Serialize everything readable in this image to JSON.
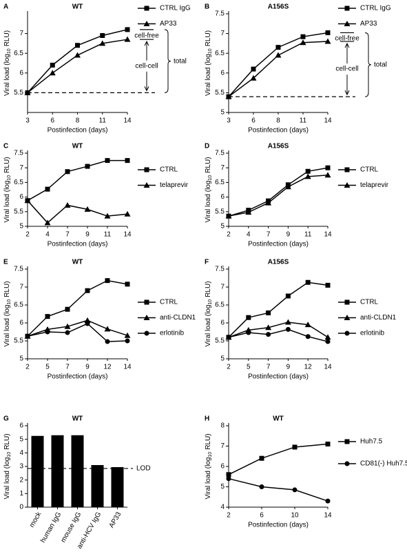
{
  "chart_data": [
    {
      "type": "line",
      "label": "A",
      "title": "WT",
      "categories": [
        "3",
        "6",
        "8",
        "11",
        "14"
      ],
      "series": [
        {
          "name": "CTRL IgG",
          "color": "#000000",
          "marker": "s",
          "values": [
            5.5,
            6.2,
            6.7,
            6.95,
            7.1
          ]
        },
        {
          "name": "AP33",
          "color": "#000000",
          "marker": "^",
          "values": [
            5.5,
            6.0,
            6.45,
            6.75,
            6.85
          ]
        }
      ],
      "ylim": [
        5,
        7.5
      ],
      "yticks": [
        5.5,
        6,
        6.5,
        7
      ],
      "hline": 5.5,
      "annotations": [
        "cell-free",
        "cell-cell",
        "total"
      ],
      "xlabel": "Postinfection (days)",
      "ylabel_parts": [
        "Viral load (log",
        "10",
        "RLU)"
      ]
    },
    {
      "type": "line",
      "label": "B",
      "title": "A156S",
      "categories": [
        "3",
        "6",
        "8",
        "11",
        "14"
      ],
      "series": [
        {
          "name": "CTRL IgG",
          "color": "#000000",
          "marker": "s",
          "values": [
            5.4,
            6.1,
            6.65,
            6.92,
            7.02
          ]
        },
        {
          "name": "AP33",
          "color": "#000000",
          "marker": "^",
          "values": [
            5.4,
            5.87,
            6.45,
            6.77,
            6.8
          ]
        }
      ],
      "ylim": [
        5,
        7.5
      ],
      "yticks": [
        5,
        5.5,
        6,
        6.5,
        7,
        7.5
      ],
      "hline": 5.4,
      "annotations": [
        "cell-free",
        "cell-cell",
        "total"
      ],
      "xlabel": "Postinfection (days)",
      "ylabel_parts": [
        "Viral load (log",
        "10",
        "RLU)"
      ]
    },
    {
      "type": "line",
      "label": "C",
      "title": "WT",
      "categories": [
        "2",
        "4",
        "7",
        "9",
        "11",
        "14"
      ],
      "series": [
        {
          "name": "CTRL",
          "color": "#000000",
          "marker": "s",
          "values": [
            5.88,
            6.27,
            6.87,
            7.05,
            7.25,
            7.25
          ]
        },
        {
          "name": "telaprevir",
          "color": "#000000",
          "marker": "^",
          "values": [
            5.88,
            5.12,
            5.72,
            5.58,
            5.35,
            5.42
          ]
        }
      ],
      "ylim": [
        5,
        7.5
      ],
      "yticks": [
        5,
        5.5,
        6,
        6.5,
        7,
        7.5
      ],
      "xlabel": "Postinfection (days)",
      "ylabel_parts": [
        "Viral load (log",
        "10",
        "RLU)"
      ]
    },
    {
      "type": "line",
      "label": "D",
      "title": "A156S",
      "categories": [
        "2",
        "4",
        "7",
        "9",
        "11",
        "14"
      ],
      "series": [
        {
          "name": "CTRL",
          "color": "#000000",
          "marker": "s",
          "values": [
            5.35,
            5.55,
            5.87,
            6.42,
            6.88,
            7.0
          ]
        },
        {
          "name": "telaprevir",
          "color": "#000000",
          "marker": "^",
          "values": [
            5.35,
            5.48,
            5.8,
            6.35,
            6.7,
            6.75
          ]
        }
      ],
      "ylim": [
        5,
        7.5
      ],
      "yticks": [
        5,
        5.5,
        6,
        6.5,
        7,
        7.5
      ],
      "xlabel": "Postinfection (days)",
      "ylabel_parts": [
        "Viral load (log",
        "10",
        "RLU)"
      ]
    },
    {
      "type": "line",
      "label": "E",
      "title": "WT",
      "categories": [
        "2",
        "5",
        "7",
        "9",
        "12",
        "14"
      ],
      "series": [
        {
          "name": "CTRL",
          "color": "#000000",
          "marker": "s",
          "values": [
            5.63,
            6.18,
            6.38,
            6.9,
            7.18,
            7.08
          ]
        },
        {
          "name": "anti-CLDN1",
          "color": "#000000",
          "marker": "^",
          "values": [
            5.63,
            5.82,
            5.9,
            6.07,
            5.83,
            5.65
          ]
        },
        {
          "name": "erlotinib",
          "color": "#000000",
          "marker": "o",
          "values": [
            5.63,
            5.75,
            5.73,
            5.98,
            5.48,
            5.5
          ]
        }
      ],
      "ylim": [
        5,
        7.5
      ],
      "yticks": [
        5,
        5.5,
        6,
        6.5,
        7,
        7.5
      ],
      "xlabel": "Postinfection (days)",
      "ylabel_parts": [
        "Viral load (log",
        "10",
        "RLU)"
      ]
    },
    {
      "type": "line",
      "label": "F",
      "title": "A156S",
      "categories": [
        "2",
        "5",
        "7",
        "9",
        "12",
        "14"
      ],
      "series": [
        {
          "name": "CTRL",
          "color": "#000000",
          "marker": "s",
          "values": [
            5.6,
            6.15,
            6.28,
            6.75,
            7.13,
            7.05
          ]
        },
        {
          "name": "anti-CLDN1",
          "color": "#000000",
          "marker": "^",
          "values": [
            5.6,
            5.8,
            5.87,
            6.02,
            5.95,
            5.6
          ]
        },
        {
          "name": "erlotinib",
          "color": "#000000",
          "marker": "o",
          "values": [
            5.6,
            5.73,
            5.68,
            5.82,
            5.62,
            5.48
          ]
        }
      ],
      "ylim": [
        5,
        7.5
      ],
      "yticks": [
        5,
        5.5,
        6,
        6.5,
        7,
        7.5
      ],
      "xlabel": "Postinfection (days)",
      "ylabel_parts": [
        "Viral load (log",
        "10",
        "RLU)"
      ]
    },
    {
      "type": "bar",
      "label": "G",
      "title": "WT",
      "categories": [
        "mock",
        "human IgG",
        "mouse IgG",
        "anti-HCV IgG",
        "AP33"
      ],
      "values": [
        5.25,
        5.3,
        5.3,
        3.1,
        2.95
      ],
      "color": "#000000",
      "ylim": [
        0,
        6
      ],
      "yticks": [
        0,
        1,
        2,
        3,
        4,
        5,
        6
      ],
      "hline": 2.85,
      "hline_label": "LOD",
      "ylabel_parts": [
        "Viral load (log",
        "10",
        "RLU)"
      ]
    },
    {
      "type": "line",
      "label": "H",
      "title": "WT",
      "x": [
        2,
        6,
        10,
        14
      ],
      "series": [
        {
          "name": "Huh7.5",
          "color": "#000000",
          "marker": "s",
          "values": [
            5.6,
            6.4,
            6.95,
            7.1
          ]
        },
        {
          "name": "CD81(-) Huh7.5",
          "color": "#000000",
          "marker": "o",
          "values": [
            5.4,
            5.0,
            4.85,
            4.3
          ]
        }
      ],
      "xlim": [
        2,
        14
      ],
      "xticks": [
        2,
        6,
        10,
        14
      ],
      "ylim": [
        4,
        8
      ],
      "yticks": [
        4,
        5,
        6,
        7,
        8
      ],
      "xlabel": "Postinfection (days)",
      "ylabel_parts": [
        "Viral load (log",
        "10",
        "RLU)"
      ]
    }
  ]
}
